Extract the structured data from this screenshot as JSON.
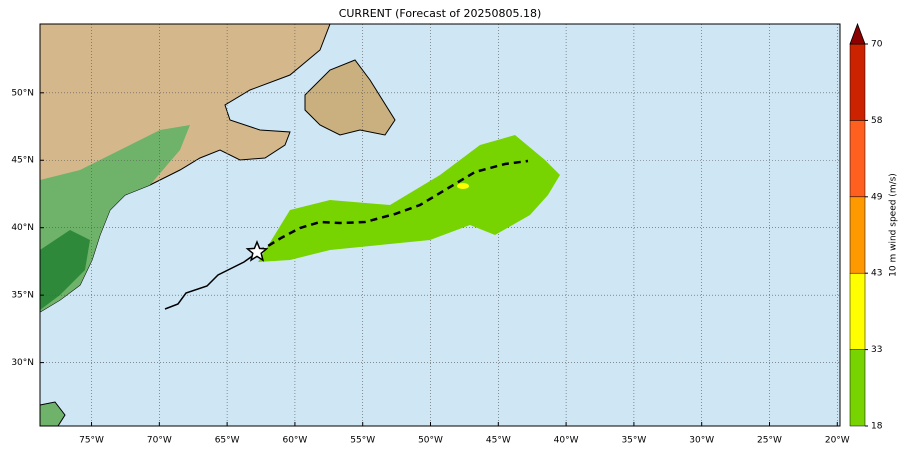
{
  "map": {
    "title": "CURRENT (Forecast of 20250805.18)",
    "lonlim": [
      -78.8,
      -19.8
    ],
    "latlim": [
      25.3,
      55.1
    ],
    "lon_ticks": [
      {
        "value": -75,
        "label": "75°W"
      },
      {
        "value": -70,
        "label": "70°W"
      },
      {
        "value": -65,
        "label": "65°W"
      },
      {
        "value": -60,
        "label": "60°W"
      },
      {
        "value": -55,
        "label": "55°W"
      },
      {
        "value": -50,
        "label": "50°W"
      },
      {
        "value": -45,
        "label": "45°W"
      },
      {
        "value": -40,
        "label": "40°W"
      },
      {
        "value": -35,
        "label": "35°W"
      },
      {
        "value": -30,
        "label": "30°W"
      },
      {
        "value": -25,
        "label": "25°W"
      },
      {
        "value": -20,
        "label": "20°W"
      }
    ],
    "lat_ticks": [
      {
        "value": 30,
        "label": "30°N"
      },
      {
        "value": 35,
        "label": "35°N"
      },
      {
        "value": 40,
        "label": "40°N"
      },
      {
        "value": 45,
        "label": "45°N"
      },
      {
        "value": 50,
        "label": "50°N"
      }
    ],
    "grid": true,
    "colorbar": {
      "label": "10 m wind speed (m/s)",
      "levels": [
        18,
        33,
        43,
        49,
        58,
        70
      ],
      "colors": [
        "#77d400",
        "#ffff00",
        "#ff9900",
        "#ff5f1f",
        "#cc2200",
        "#8b0000"
      ]
    }
  }
}
